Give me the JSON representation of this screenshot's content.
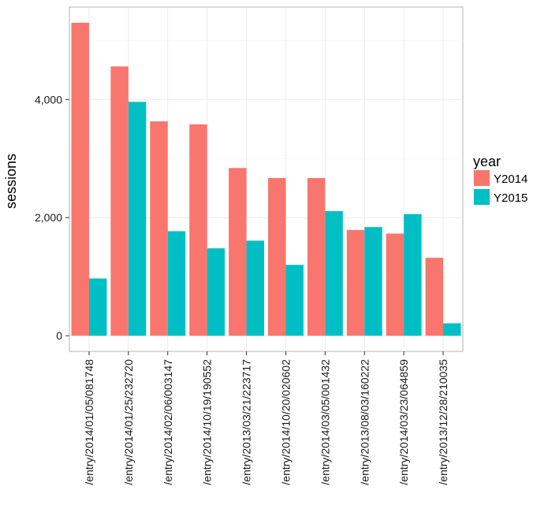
{
  "chart_data": {
    "type": "bar",
    "categories": [
      "/entry/2014/01/05/081748",
      "/entry/2014/01/25/232720",
      "/entry/2014/02/06/003147",
      "/entry/2014/10/19/190552",
      "/entry/2013/03/21/223717",
      "/entry/2014/10/20/020602",
      "/entry/2014/03/05/001432",
      "/entry/2013/08/03/160222",
      "/entry/2014/03/23/064859",
      "/entry/2013/12/28/210035"
    ],
    "series": [
      {
        "name": "Y2014",
        "color": "#F8766D",
        "values": [
          5300,
          4560,
          3630,
          3580,
          2840,
          2670,
          2670,
          1790,
          1730,
          1320
        ]
      },
      {
        "name": "Y2015",
        "color": "#00BFC4",
        "values": [
          970,
          3960,
          1770,
          1480,
          1610,
          1200,
          2110,
          1840,
          2060,
          210
        ]
      }
    ],
    "xlabel": "",
    "ylabel": "sessions",
    "yticks": [
      0,
      2000,
      4000
    ],
    "ytick_labels": [
      "0",
      "2,000",
      "4,000"
    ],
    "ylim": [
      -265,
      5565
    ],
    "grid": true,
    "legend": {
      "title": "year",
      "position": "right"
    }
  }
}
